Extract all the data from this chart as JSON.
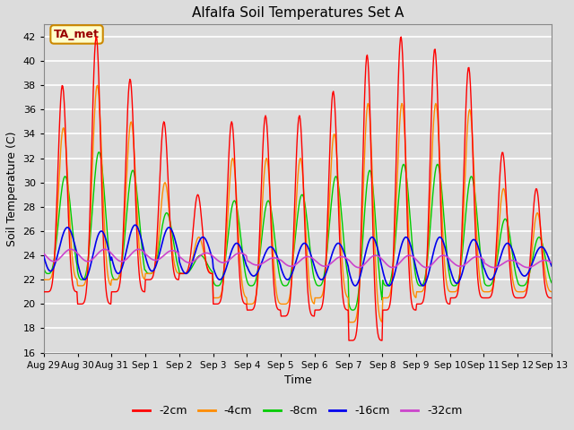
{
  "title": "Alfalfa Soil Temperatures Set A",
  "xlabel": "Time",
  "ylabel": "Soil Temperature (C)",
  "ylim": [
    16,
    43
  ],
  "yticks": [
    16,
    18,
    20,
    22,
    24,
    26,
    28,
    30,
    32,
    34,
    36,
    38,
    40,
    42
  ],
  "x_labels": [
    "Aug 29",
    "Aug 30",
    "Aug 31",
    "Sep 1",
    "Sep 2",
    "Sep 3",
    "Sep 4",
    "Sep 5",
    "Sep 6",
    "Sep 7",
    "Sep 8",
    "Sep 9",
    "Sep 10",
    "Sep 11",
    "Sep 12",
    "Sep 13"
  ],
  "colors": {
    "-2cm": "#ff0000",
    "-4cm": "#ff8c00",
    "-8cm": "#00cc00",
    "-16cm": "#0000ee",
    "-32cm": "#cc44cc"
  },
  "legend_label": "TA_met",
  "legend_bg": "#ffffcc",
  "legend_border": "#cc8800",
  "plot_bg": "#dcdcdc",
  "grid_color": "#ffffff",
  "n_days": 15,
  "pts_per_day": 48,
  "day_peaks_2cm": [
    38.0,
    42.0,
    38.5,
    35.0,
    29.0,
    35.0,
    35.5,
    35.5,
    37.5,
    40.5,
    42.0,
    41.0,
    39.5,
    32.5,
    29.5
  ],
  "day_peaks_4cm": [
    34.5,
    38.0,
    35.0,
    30.0,
    25.5,
    32.0,
    32.0,
    32.0,
    34.0,
    36.5,
    36.5,
    36.5,
    36.0,
    29.5,
    27.5
  ],
  "day_peaks_8cm": [
    30.5,
    32.5,
    31.0,
    27.5,
    24.0,
    28.5,
    28.5,
    29.0,
    30.5,
    31.0,
    31.5,
    31.5,
    30.5,
    27.0,
    25.5
  ],
  "day_mins_2cm": [
    21.0,
    20.0,
    21.0,
    22.0,
    22.5,
    20.0,
    19.5,
    19.0,
    19.5,
    17.0,
    19.5,
    20.0,
    20.5,
    20.5,
    20.5
  ],
  "day_mins_4cm": [
    22.0,
    21.5,
    22.0,
    22.5,
    22.5,
    20.5,
    20.0,
    20.0,
    20.5,
    18.5,
    20.5,
    21.0,
    21.0,
    21.0,
    21.0
  ],
  "day_mins_8cm": [
    22.5,
    22.0,
    22.0,
    22.5,
    22.5,
    21.5,
    21.5,
    21.5,
    21.5,
    19.5,
    21.5,
    21.5,
    21.5,
    21.5,
    21.5
  ],
  "day_base_16cm": [
    24.5,
    24.0,
    24.5,
    24.5,
    24.0,
    23.5,
    23.5,
    23.5,
    23.5,
    23.5,
    23.5,
    23.5,
    23.5,
    23.5,
    23.5
  ],
  "day_amp_16cm": [
    1.8,
    2.0,
    2.0,
    1.8,
    1.5,
    1.5,
    1.2,
    1.5,
    1.5,
    2.0,
    2.0,
    2.0,
    1.8,
    1.5,
    1.2
  ],
  "day_base_32cm": [
    24.0,
    24.0,
    24.0,
    24.0,
    23.8,
    23.8,
    23.5,
    23.5,
    23.5,
    23.5,
    23.5,
    23.5,
    23.5,
    23.3,
    23.3
  ],
  "day_amp_32cm": [
    0.5,
    0.5,
    0.5,
    0.4,
    0.4,
    0.4,
    0.3,
    0.4,
    0.4,
    0.5,
    0.5,
    0.5,
    0.4,
    0.3,
    0.3
  ]
}
